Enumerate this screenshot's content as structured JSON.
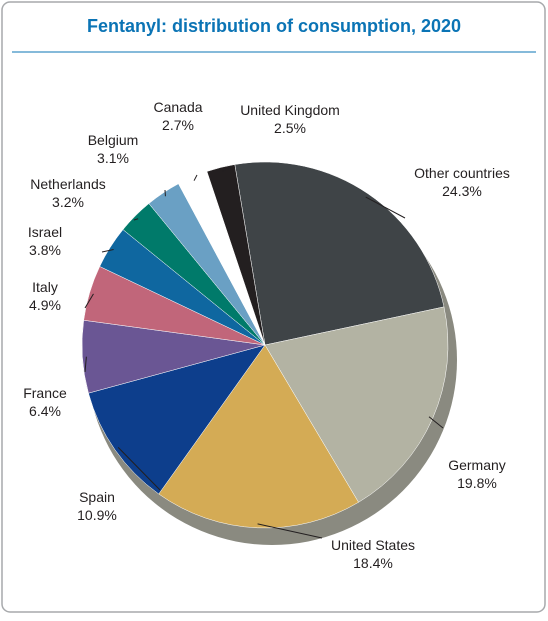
{
  "chart_data": {
    "type": "pie",
    "title": "Fentanyl: distribution of consumption, 2020",
    "categories": [
      "Other countries",
      "Germany",
      "United States",
      "Spain",
      "France",
      "Italy",
      "Israel",
      "Netherlands",
      "Belgium",
      "Canada",
      "United Kingdom"
    ],
    "values": [
      24.3,
      19.8,
      18.4,
      10.9,
      6.4,
      4.9,
      3.8,
      3.2,
      3.1,
      2.7,
      2.5
    ],
    "value_labels": [
      "24.3%",
      "19.8%",
      "18.4%",
      "10.9%",
      "6.4%",
      "4.9%",
      "3.8%",
      "3.2%",
      "3.1%",
      "2.7%",
      "2.5%"
    ],
    "colors": [
      "#3f4447",
      "#b3b3a3",
      "#d4ab55",
      "#0d3e8c",
      "#6a5694",
      "#c1667a",
      "#0f67a0",
      "#007a6a",
      "#6aa0c4",
      "#ffffff",
      "#231f20"
    ]
  }
}
